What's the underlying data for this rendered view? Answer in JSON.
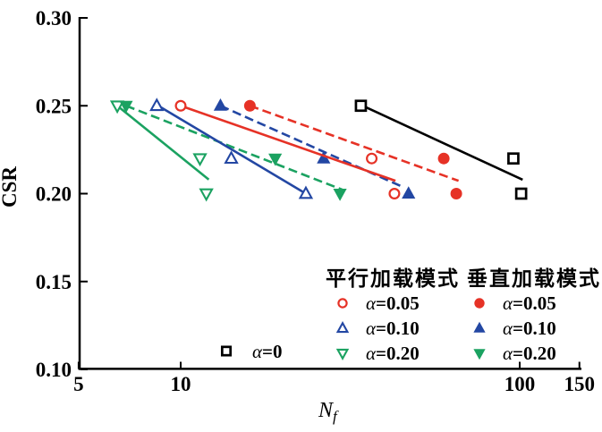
{
  "chart_data": {
    "type": "scatter",
    "title": "",
    "ylabel": "CSR",
    "xlabel_main": "N",
    "xlabel_sub": "f",
    "x_scale": "log",
    "xlim": [
      5,
      150
    ],
    "ylim": [
      0.1,
      0.3
    ],
    "grid": false,
    "x_ticks": [
      {
        "value": 5,
        "label": "5"
      },
      {
        "value": 10,
        "label": "10"
      },
      {
        "value": 100,
        "label": "100"
      },
      {
        "value": 150,
        "label": "150"
      }
    ],
    "y_ticks": [
      {
        "value": 0.1,
        "label": "0.10"
      },
      {
        "value": 0.15,
        "label": "0.15"
      },
      {
        "value": 0.2,
        "label": "0.20"
      },
      {
        "value": 0.25,
        "label": "0.25"
      },
      {
        "value": 0.3,
        "label": "0.30"
      }
    ],
    "colors": {
      "red": "#e63226",
      "blue": "#2347a3",
      "green": "#1ba261",
      "black": "#000000"
    },
    "series": [
      {
        "id": "parallel-a020",
        "name": "平行加载模式 α=0.20",
        "color": "#1ba261",
        "marker": "triangle-down",
        "filled": false,
        "line": "solid",
        "points": [
          [
            6.5,
            0.25
          ],
          [
            11.4,
            0.22
          ],
          [
            11.9,
            0.2
          ]
        ],
        "fit_line": [
          [
            6.5,
            0.25
          ],
          [
            12.1,
            0.208
          ]
        ]
      },
      {
        "id": "vertical-a020",
        "name": "垂直加载模式 α=0.20",
        "color": "#1ba261",
        "marker": "triangle-down",
        "filled": true,
        "line": "dashed",
        "points": [
          [
            6.9,
            0.25
          ],
          [
            19.0,
            0.22
          ],
          [
            29.5,
            0.2
          ]
        ],
        "fit_line": [
          [
            6.9,
            0.25
          ],
          [
            30.2,
            0.202
          ]
        ]
      },
      {
        "id": "parallel-a010",
        "name": "平行加载模式 α=0.10",
        "color": "#2347a3",
        "marker": "triangle-up",
        "filled": false,
        "line": "solid",
        "points": [
          [
            8.5,
            0.25
          ],
          [
            14.1,
            0.22
          ],
          [
            23.4,
            0.2
          ]
        ],
        "fit_line": [
          [
            8.5,
            0.2505
          ],
          [
            23.4,
            0.2
          ]
        ]
      },
      {
        "id": "vertical-a010",
        "name": "垂直加载模式 α=0.10",
        "color": "#2347a3",
        "marker": "triangle-up",
        "filled": true,
        "line": "dashed",
        "points": [
          [
            13.1,
            0.25
          ],
          [
            26.4,
            0.22
          ],
          [
            47.0,
            0.2
          ]
        ],
        "fit_line": [
          [
            13.1,
            0.25
          ],
          [
            44.6,
            0.2043
          ]
        ]
      },
      {
        "id": "parallel-a005",
        "name": "平行加载模式 α=0.05",
        "color": "#e63226",
        "marker": "circle",
        "filled": false,
        "line": "solid",
        "points": [
          [
            10.0,
            0.25
          ],
          [
            36.6,
            0.22
          ],
          [
            42.7,
            0.2
          ]
        ],
        "fit_line": [
          [
            10.0,
            0.25
          ],
          [
            43.0,
            0.2073
          ]
        ]
      },
      {
        "id": "vertical-a005",
        "name": "垂直加载模式 α=0.05",
        "color": "#e63226",
        "marker": "circle",
        "filled": true,
        "line": "dashed",
        "points": [
          [
            16.0,
            0.25
          ],
          [
            59.7,
            0.22
          ],
          [
            65.0,
            0.2
          ]
        ],
        "fit_line": [
          [
            16.0,
            0.25
          ],
          [
            66.0,
            0.2073
          ]
        ]
      },
      {
        "id": "alpha0",
        "name": "α=0",
        "color": "#000000",
        "marker": "square",
        "filled": false,
        "line": "solid",
        "points": [
          [
            34.0,
            0.25
          ],
          [
            95.8,
            0.22
          ],
          [
            101.0,
            0.2
          ]
        ],
        "fit_line": [
          [
            34.0,
            0.2505
          ],
          [
            102.0,
            0.2079
          ]
        ]
      }
    ],
    "legend": {
      "position": "inside-bottom-right",
      "columns": [
        {
          "header": "平行加载模式",
          "items": [
            {
              "series": "parallel-a005",
              "label": "α=0.05"
            },
            {
              "series": "parallel-a010",
              "label": "α=0.10"
            },
            {
              "series": "parallel-a020",
              "label": "α=0.20"
            }
          ]
        },
        {
          "header": "垂直加载模式",
          "items": [
            {
              "series": "vertical-a005",
              "label": "α=0.05"
            },
            {
              "series": "vertical-a010",
              "label": "α=0.10"
            },
            {
              "series": "vertical-a020",
              "label": "α=0.20"
            }
          ]
        }
      ],
      "alpha0": {
        "series": "alpha0",
        "label": "α=0"
      }
    }
  }
}
